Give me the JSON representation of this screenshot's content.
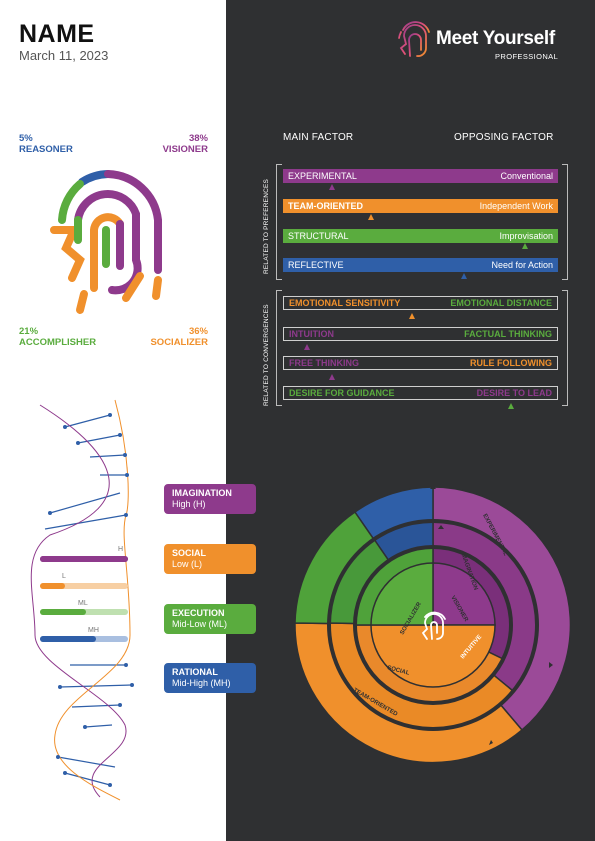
{
  "header": {
    "name": "NAME",
    "date": "March 11, 2023"
  },
  "brand": {
    "title": "Meet Yourself",
    "subtitle": "PROFESSIONAL"
  },
  "profile": [
    {
      "percent": "5%",
      "label": "REASONER",
      "color": "#2f5fa8"
    },
    {
      "percent": "38%",
      "label": "VISIONER",
      "color": "#8e3a8c"
    },
    {
      "percent": "21%",
      "label": "ACCOMPLISHER",
      "color": "#5aac3e"
    },
    {
      "percent": "36%",
      "label": "SOCIALIZER",
      "color": "#f0902c"
    }
  ],
  "factors": {
    "main_header": "MAIN FACTOR",
    "opposing_header": "OPPOSING FACTOR",
    "preferences_label": "RELATED TO PREFERENCES",
    "convergences_label": "RELATED TO CONVERGENCES",
    "preferences": [
      {
        "main": "EXPERIMENTAL",
        "opposing": "Conventional",
        "color": "#8e3a8c",
        "marker": 0.18
      },
      {
        "main": "TEAM-ORIENTED",
        "opposing": "Independent Work",
        "color": "#f0902c",
        "marker": 0.32
      },
      {
        "main": "STRUCTURAL",
        "opposing": "Improvisation",
        "color": "#5aac3e",
        "marker": 0.88
      },
      {
        "main": "REFLECTIVE",
        "opposing": "Need for Action",
        "color": "#2f5fa8",
        "marker": 0.66
      }
    ],
    "convergences": [
      {
        "main": "EMOTIONAL SENSITIVITY",
        "opposing": "EMOTIONAL DISTANCE",
        "main_color": "#f0902c",
        "opposing_color": "#5aac3e",
        "marker": 0.47
      },
      {
        "main": "INTUITION",
        "opposing": "FACTUAL THINKING",
        "main_color": "#8e3a8c",
        "opposing_color": "#5aac3e",
        "marker": 0.09
      },
      {
        "main": "FREE THINKING",
        "opposing": "RULE FOLLOWING",
        "main_color": "#8e3a8c",
        "opposing_color": "#f0902c",
        "marker": 0.18
      },
      {
        "main": "DESIRE FOR GUIDANCE",
        "opposing": "DESIRE TO LEAD",
        "main_color": "#5aac3e",
        "opposing_color": "#8e3a8c",
        "marker": 0.83
      }
    ]
  },
  "levels": [
    {
      "code": "H",
      "value": 1.0,
      "color": "#8e3a8c",
      "track": "#8e3a8c"
    },
    {
      "code": "L",
      "value": 0.28,
      "color": "#f0902c",
      "track": "#f7cfa3"
    },
    {
      "code": "ML",
      "value": 0.52,
      "color": "#5aac3e",
      "track": "#bfe0b0"
    },
    {
      "code": "MH",
      "value": 0.64,
      "color": "#2f5fa8",
      "track": "#a9bfe0"
    }
  ],
  "cards": [
    {
      "title": "IMAGINATION",
      "level": "High (H)",
      "color": "#8e3a8c"
    },
    {
      "title": "SOCIAL",
      "level": "Low (L)",
      "color": "#f0902c"
    },
    {
      "title": "EXECUTION",
      "level": "Mid-Low (ML)",
      "color": "#5aac3e"
    },
    {
      "title": "RATIONAL",
      "level": "Mid-High (MH)",
      "color": "#2f5fa8"
    }
  ],
  "wheel": {
    "inner": [
      "VISIONER",
      "SOCIALIZER"
    ],
    "middle": [
      "INTUITIVE",
      "IMAGINATION",
      "SOCIAL"
    ],
    "outer": [
      "EXPERIMENTAL",
      "TEAM-ORIENTED"
    ]
  }
}
